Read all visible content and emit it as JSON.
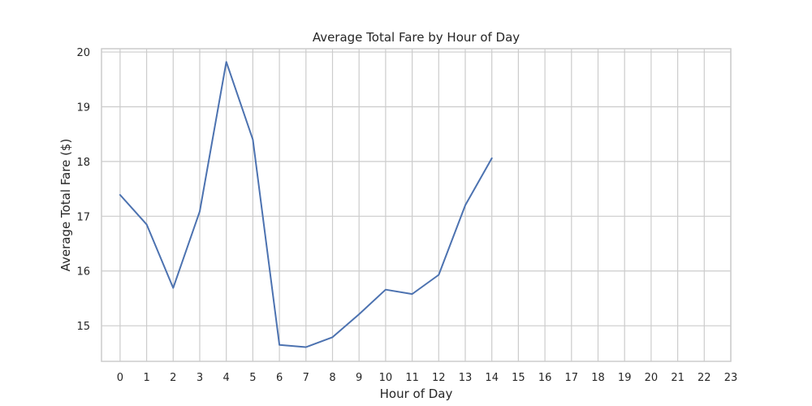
{
  "chart_data": {
    "type": "line",
    "title": "Average Total Fare by Hour of Day",
    "xlabel": "Hour of Day",
    "ylabel": "Average Total Fare ($)",
    "x_ticks": [
      0,
      1,
      2,
      3,
      4,
      5,
      6,
      7,
      8,
      9,
      10,
      11,
      12,
      13,
      14,
      15,
      16,
      17,
      18,
      19,
      20,
      21,
      22,
      23
    ],
    "y_ticks": [
      15,
      16,
      17,
      18,
      19,
      20
    ],
    "xlim": [
      -0.7,
      23.0
    ],
    "ylim": [
      14.35,
      20.06
    ],
    "grid": true,
    "series": [
      {
        "color": "#4c72b0",
        "x": [
          0,
          1,
          2,
          3,
          4,
          5,
          6,
          7,
          8,
          9,
          10,
          11,
          12,
          13,
          14
        ],
        "y": [
          17.39,
          16.85,
          15.69,
          17.09,
          19.82,
          18.4,
          14.65,
          14.61,
          14.79,
          15.21,
          15.66,
          15.58,
          15.93,
          17.2,
          18.06
        ]
      }
    ]
  }
}
